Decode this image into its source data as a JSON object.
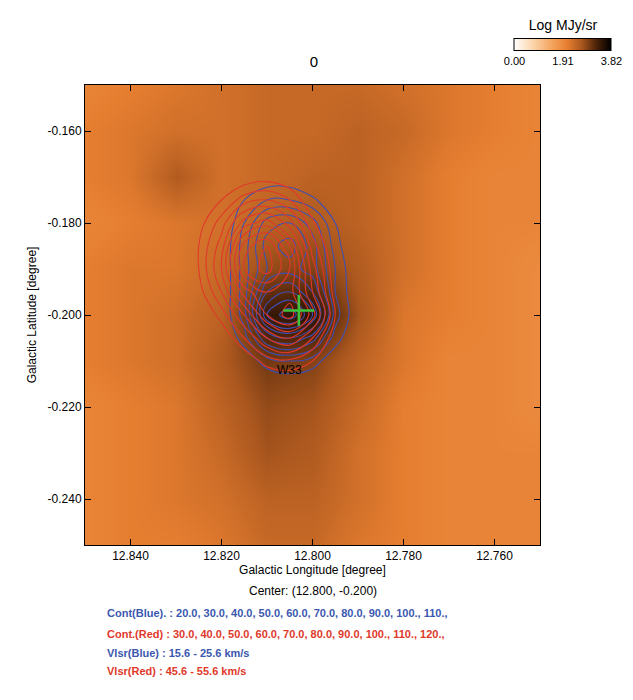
{
  "chart_data": {
    "type": "heatmap",
    "title": "0",
    "x_label": "Galactic Longitude [degree]",
    "y_label": "Galactic Latitude [degree]",
    "xlim": [
      12.85,
      12.75
    ],
    "ylim": [
      -0.25,
      -0.15
    ],
    "xticks": [
      {
        "value": 12.84,
        "label": "12.840"
      },
      {
        "value": 12.82,
        "label": "12.820"
      },
      {
        "value": 12.8,
        "label": "12.800"
      },
      {
        "value": 12.78,
        "label": "12.780"
      },
      {
        "value": 12.76,
        "label": "12.760"
      }
    ],
    "yticks": [
      {
        "value": -0.24,
        "label": "-0.240"
      },
      {
        "value": -0.22,
        "label": "-0.220"
      },
      {
        "value": -0.2,
        "label": "-0.200"
      },
      {
        "value": -0.18,
        "label": "-0.180"
      },
      {
        "value": -0.16,
        "label": "-0.160"
      }
    ],
    "image": {
      "x": [
        12.85,
        12.84,
        12.83,
        12.82,
        12.81,
        12.8,
        12.79,
        12.78,
        12.77,
        12.76,
        12.75
      ],
      "y": [
        -0.25,
        -0.24,
        -0.23,
        -0.22,
        -0.21,
        -0.2,
        -0.19,
        -0.18,
        -0.17,
        -0.16,
        -0.15
      ],
      "z": [
        [
          2.0,
          2.1,
          2.1,
          2.2,
          2.4,
          2.4,
          2.2,
          2.1,
          2.0,
          2.0,
          2.0
        ],
        [
          2.0,
          2.1,
          2.2,
          2.3,
          2.5,
          2.5,
          2.3,
          2.1,
          2.0,
          2.0,
          2.0
        ],
        [
          2.0,
          2.1,
          2.2,
          2.4,
          2.7,
          2.6,
          2.3,
          2.1,
          2.0,
          2.0,
          2.0
        ],
        [
          2.0,
          2.1,
          2.2,
          2.5,
          2.8,
          2.7,
          2.4,
          2.1,
          2.0,
          2.0,
          1.9
        ],
        [
          2.1,
          2.2,
          2.3,
          2.6,
          3.0,
          2.9,
          2.5,
          2.2,
          2.0,
          2.0,
          1.9
        ],
        [
          2.1,
          2.2,
          2.3,
          2.5,
          3.4,
          3.5,
          2.7,
          2.2,
          2.1,
          2.0,
          1.9
        ],
        [
          2.1,
          2.2,
          2.2,
          2.4,
          2.8,
          2.9,
          2.6,
          2.3,
          2.1,
          2.0,
          1.9
        ],
        [
          2.0,
          2.1,
          2.2,
          2.3,
          2.5,
          2.6,
          2.5,
          2.3,
          2.1,
          2.0,
          2.0
        ],
        [
          2.1,
          2.2,
          2.6,
          2.3,
          2.4,
          2.5,
          2.5,
          2.3,
          2.1,
          2.0,
          2.0
        ],
        [
          2.1,
          2.2,
          2.3,
          2.3,
          2.4,
          2.4,
          2.5,
          2.4,
          2.2,
          2.1,
          2.0
        ],
        [
          2.0,
          2.1,
          2.2,
          2.3,
          2.4,
          2.4,
          2.4,
          2.3,
          2.2,
          2.1,
          2.0
        ]
      ],
      "colorbar": {
        "title": "Log MJy/sr",
        "range": [
          0,
          3.82
        ],
        "ticks": [
          {
            "value": 0,
            "label": "0.00"
          },
          1.91,
          3.82
        ]
      }
    },
    "series": [
      {
        "type": "contour",
        "color": "#3f4fb3",
        "levels": [
          20,
          30,
          40,
          50,
          60,
          70,
          80,
          90,
          100,
          110
        ],
        "x": [
          12.83,
          12.825,
          12.82,
          12.815,
          12.81,
          12.805,
          12.8,
          12.795,
          12.79,
          12.785,
          12.78
        ],
        "y": [
          -0.215,
          -0.21,
          -0.205,
          -0.2,
          -0.195,
          -0.19,
          -0.185,
          -0.18,
          -0.175,
          -0.17,
          -0.165
        ],
        "z": [
          [
            0,
            0,
            0,
            5,
            10,
            12,
            10,
            5,
            0,
            0,
            0
          ],
          [
            0,
            0,
            5,
            12,
            25,
            30,
            25,
            12,
            5,
            0,
            0
          ],
          [
            0,
            0,
            8,
            25,
            60,
            70,
            55,
            25,
            8,
            0,
            0
          ],
          [
            0,
            0,
            10,
            35,
            100,
            118,
            90,
            35,
            10,
            0,
            0
          ],
          [
            0,
            0,
            10,
            35,
            80,
            90,
            70,
            30,
            10,
            0,
            0
          ],
          [
            0,
            0,
            10,
            35,
            60,
            65,
            55,
            30,
            8,
            0,
            0
          ],
          [
            0,
            0,
            10,
            35,
            65,
            75,
            55,
            25,
            5,
            0,
            0
          ],
          [
            0,
            0,
            8,
            30,
            55,
            60,
            45,
            20,
            5,
            0,
            0
          ],
          [
            0,
            0,
            5,
            20,
            30,
            30,
            22,
            12,
            0,
            0,
            0
          ],
          [
            0,
            0,
            0,
            8,
            12,
            12,
            8,
            5,
            0,
            0,
            0
          ],
          [
            0,
            0,
            0,
            0,
            5,
            5,
            0,
            0,
            0,
            0,
            0
          ]
        ]
      },
      {
        "type": "contour",
        "color": "#e0392b",
        "levels": [
          30,
          40,
          50,
          60,
          70,
          80,
          90,
          100,
          110,
          120
        ],
        "x": [
          12.83,
          12.825,
          12.82,
          12.815,
          12.81,
          12.805,
          12.8,
          12.795,
          12.79,
          12.785,
          12.78
        ],
        "y": [
          -0.215,
          -0.21,
          -0.205,
          -0.2,
          -0.195,
          -0.19,
          -0.185,
          -0.18,
          -0.175,
          -0.17,
          -0.165
        ],
        "z": [
          [
            0,
            0,
            5,
            10,
            15,
            18,
            12,
            5,
            0,
            0,
            0
          ],
          [
            0,
            5,
            10,
            20,
            35,
            38,
            30,
            12,
            5,
            0,
            0
          ],
          [
            0,
            8,
            20,
            40,
            60,
            70,
            50,
            22,
            8,
            0,
            0
          ],
          [
            5,
            15,
            35,
            60,
            90,
            105,
            75,
            30,
            10,
            0,
            0
          ],
          [
            8,
            25,
            50,
            85,
            100,
            95,
            60,
            25,
            8,
            0,
            0
          ],
          [
            10,
            30,
            60,
            110,
            125,
            100,
            55,
            22,
            5,
            0,
            0
          ],
          [
            10,
            30,
            55,
            105,
            120,
            90,
            45,
            18,
            5,
            0,
            0
          ],
          [
            8,
            25,
            45,
            75,
            85,
            65,
            32,
            12,
            0,
            0,
            0
          ],
          [
            5,
            15,
            30,
            45,
            50,
            40,
            20,
            8,
            0,
            0,
            0
          ],
          [
            0,
            8,
            15,
            22,
            25,
            20,
            10,
            0,
            0,
            0,
            0
          ],
          [
            0,
            0,
            5,
            8,
            10,
            8,
            0,
            0,
            0,
            0,
            0
          ]
        ]
      },
      {
        "type": "scatter",
        "marker": "cross",
        "color": "#3ec43e",
        "x": [
          12.803
        ],
        "y": [
          -0.199
        ]
      }
    ],
    "annotations": [
      {
        "text": "W33",
        "x": 12.805,
        "y": -0.212
      }
    ],
    "notes": [
      {
        "text": "Center: (12.800, -0.200)",
        "color": "#000000"
      },
      {
        "text": "Cont(Blue). : 20.0, 30.0, 40.0, 50.0, 60.0, 70.0, 80.0, 90.0, 100., 110.,",
        "color": "#3b58b0"
      },
      {
        "text": "Cont.(Red) : 30.0, 40.0, 50.0, 60.0, 70.0, 80.0, 90.0, 100., 110., 120.,",
        "color": "#e0392b"
      },
      {
        "text": "Vlsr(Blue) : 15.6 - 25.6 km/s",
        "color": "#3b58b0"
      },
      {
        "text": "Vlsr(Red) : 45.6 - 55.6 km/s",
        "color": "#e0392b"
      }
    ]
  }
}
